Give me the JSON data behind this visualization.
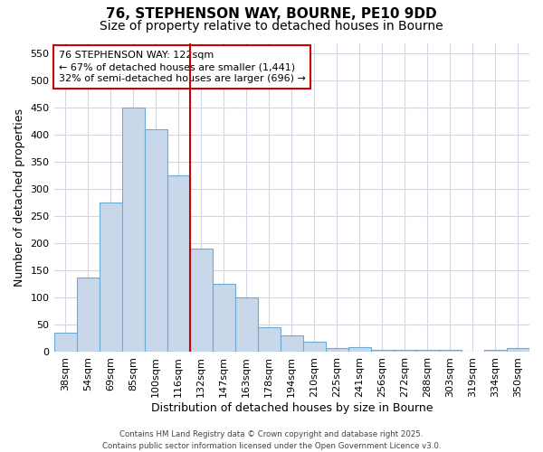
{
  "title1": "76, STEPHENSON WAY, BOURNE, PE10 9DD",
  "title2": "Size of property relative to detached houses in Bourne",
  "xlabel": "Distribution of detached houses by size in Bourne",
  "ylabel": "Number of detached properties",
  "categories": [
    "38sqm",
    "54sqm",
    "69sqm",
    "85sqm",
    "100sqm",
    "116sqm",
    "132sqm",
    "147sqm",
    "163sqm",
    "178sqm",
    "194sqm",
    "210sqm",
    "225sqm",
    "241sqm",
    "256sqm",
    "272sqm",
    "288sqm",
    "303sqm",
    "319sqm",
    "334sqm",
    "350sqm"
  ],
  "values": [
    35,
    136,
    275,
    450,
    410,
    325,
    190,
    125,
    100,
    45,
    30,
    19,
    6,
    8,
    4,
    4,
    3,
    3,
    0,
    3,
    6
  ],
  "bar_color": "#c8d8ea",
  "bar_edge_color": "#6aaad4",
  "vline_x": 5.5,
  "vline_color": "#cc0000",
  "annotation_text": "76 STEPHENSON WAY: 122sqm\n← 67% of detached houses are smaller (1,441)\n32% of semi-detached houses are larger (696) →",
  "annotation_box_color": "#ffffff",
  "annotation_box_edge": "#cc0000",
  "ylim": [
    0,
    570
  ],
  "yticks": [
    0,
    50,
    100,
    150,
    200,
    250,
    300,
    350,
    400,
    450,
    500,
    550
  ],
  "footer": "Contains HM Land Registry data © Crown copyright and database right 2025.\nContains public sector information licensed under the Open Government Licence v3.0.",
  "background_color": "#ffffff",
  "grid_color": "#d0d8e8",
  "title_fontsize": 11,
  "tick_fontsize": 8,
  "label_fontsize": 9,
  "annotation_fontsize": 8
}
